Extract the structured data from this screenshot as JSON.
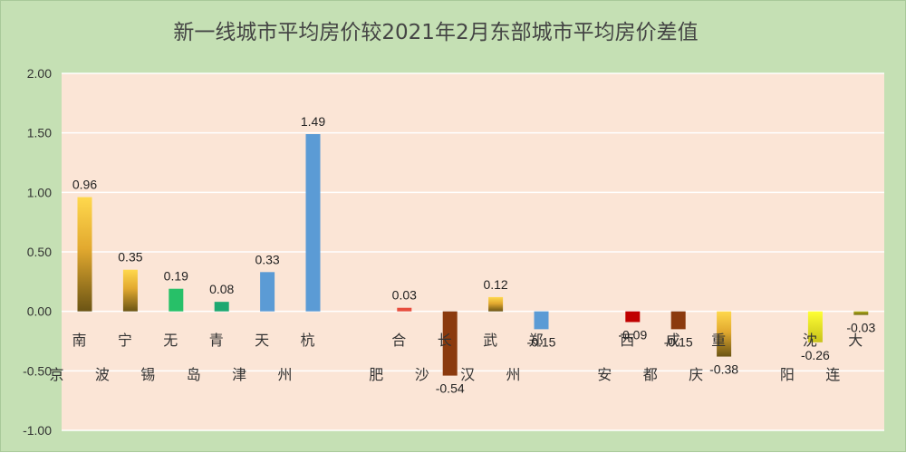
{
  "chart_data": {
    "type": "bar",
    "title": "新一线城市平均房价较2021年2月东部城市平均房价差值",
    "categories": [
      "南京",
      "宁波",
      "无锡",
      "青岛",
      "天津",
      "杭州",
      "",
      "合肥",
      "长沙",
      "武汉",
      "郑州",
      "",
      "西安",
      "成都",
      "重庆",
      "",
      "沈阳",
      "大连"
    ],
    "values": [
      0.96,
      0.35,
      0.19,
      0.08,
      0.33,
      1.49,
      null,
      0.03,
      -0.54,
      0.12,
      -0.15,
      null,
      -0.09,
      -0.15,
      -0.38,
      null,
      -0.26,
      -0.03
    ],
    "data_labels": [
      "0.96",
      "0.35",
      "0.19",
      "0.08",
      "0.33",
      "1.49",
      "",
      "0.03",
      "-0.54",
      "0.12",
      "-0.15",
      "",
      "-0.09",
      "-0.15",
      "-0.38",
      "",
      "-0.26",
      "-0.03"
    ],
    "ylim": [
      -1.0,
      2.0
    ],
    "y_ticks": [
      "2.00",
      "1.50",
      "1.00",
      "0.50",
      "0.00",
      "-0.50",
      "-1.00"
    ],
    "grid": true,
    "legend": "none",
    "colors": {
      "plot_background": "#fbe5d6",
      "frame_background": "#c5e0b4",
      "gridline": "#ffffff",
      "bars": [
        "gold-gradient",
        "gold-gradient",
        "#27c068",
        "#1da870",
        "#5b9bd5",
        "#5b9bd5",
        null,
        "#e74c3c",
        "#8b3a0e",
        "gold-gradient",
        "#5b9bd5",
        null,
        "#c00000",
        "#8b3a0e",
        "gold-gradient",
        null,
        "yellow-gradient",
        "olive-gradient"
      ]
    }
  }
}
